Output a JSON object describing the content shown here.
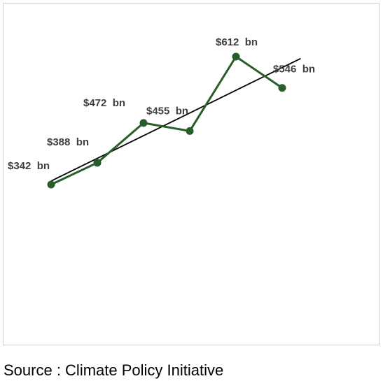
{
  "chart_data": {
    "type": "line",
    "x": [
      1,
      2,
      3,
      4,
      5,
      6
    ],
    "values": [
      342,
      388,
      472,
      455,
      612,
      546
    ],
    "data_labels": [
      "$342  bn",
      "$388  bn",
      "$472  bn",
      "$455  bn",
      "$612  bn",
      "$546  bn"
    ],
    "trendline": {
      "type": "linear",
      "x_extent": [
        1,
        6.4
      ]
    },
    "ylim": [
      0,
      700
    ],
    "grid": false,
    "legend": "none",
    "axes_visible": false,
    "colors": {
      "series": "#275e2a",
      "trendline": "#000000",
      "labels": "#404040"
    }
  },
  "source": "Source : Climate Policy Initiative"
}
